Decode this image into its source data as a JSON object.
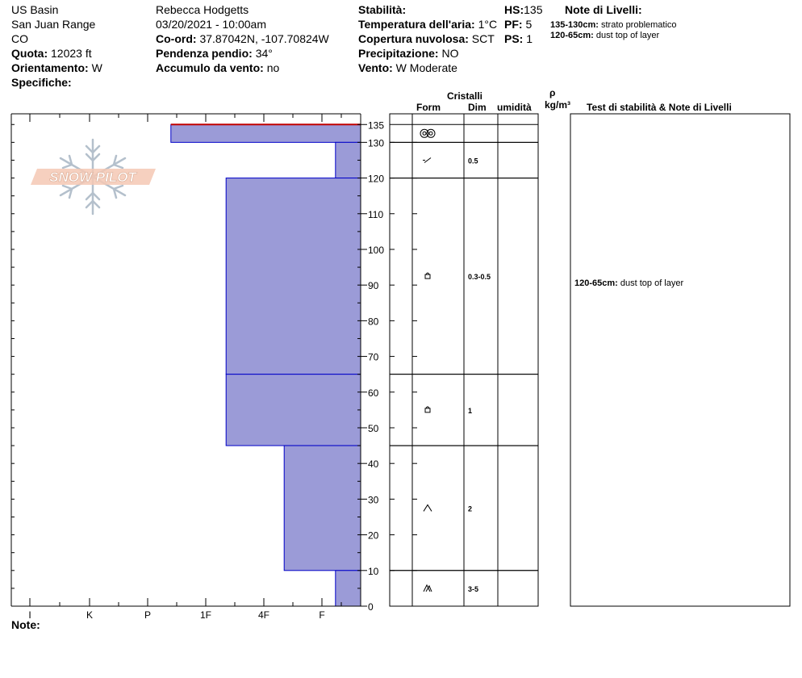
{
  "header": {
    "location": [
      "US Basin",
      "San Juan Range",
      "CO"
    ],
    "observer": "Rebecca Hodgetts",
    "datetime": "03/20/2021 - 10:00am",
    "quota_label": "Quota:",
    "quota_value": "12023 ft",
    "orient_label": "Orientamento:",
    "orient_value": "W",
    "specifiche_label": "Specifiche:",
    "coord_label": "Co-ord:",
    "coord_value": "37.87042N, -107.70824W",
    "pendenza_label": "Pendenza pendio:",
    "pendenza_value": "34°",
    "accumulo_label": "Accumulo da vento:",
    "accumulo_value": "no",
    "stabilita_label": "Stabilità:",
    "temp_label": "Temperatura dell'aria:",
    "temp_value": "1°C",
    "copertura_label": "Copertura nuvolosa:",
    "copertura_value": "SCT",
    "precip_label": "Precipitazione:",
    "precip_value": "NO",
    "vento_label": "Vento:",
    "vento_value": "W Moderate",
    "hs_label": "HS:",
    "hs_value": "135",
    "pf_label": "PF:",
    "pf_value": "5",
    "ps_label": "PS:",
    "ps_value": "1",
    "notes_title": "Note di Livelli:",
    "notes": [
      {
        "range": "135-130cm:",
        "text": "strato problematico"
      },
      {
        "range": "120-65cm:",
        "text": "dust top of layer"
      }
    ]
  },
  "columns": {
    "cristalli": "Cristalli",
    "form": "Form",
    "dim": "Dim",
    "umidita": "umidità",
    "rho": "ρ",
    "density_unit": "kg/m³",
    "tests": "Test di stabilità & Note di Livelli"
  },
  "logo_text": "SNOW PILOT",
  "footer_note": "Note:",
  "chart_data": {
    "type": "bar",
    "orientation": "horizontal",
    "title": "",
    "ylabel": "",
    "ylim": [
      0,
      138
    ],
    "y_ticks": [
      0,
      10,
      20,
      30,
      40,
      50,
      60,
      70,
      80,
      90,
      100,
      110,
      120,
      130,
      135
    ],
    "hardness_categories": [
      "I",
      "K",
      "P",
      "1F",
      "4F",
      "F"
    ],
    "hardness_scale_note": "hardness index: F=1, 4F=2, 1F=3, P=4, K=5, I=6",
    "layers": [
      {
        "top": 135,
        "bottom": 130,
        "hardness_index": 3.6,
        "form": "melt-forms",
        "dim": ""
      },
      {
        "top": 130,
        "bottom": 120,
        "hardness_index": 0.65,
        "form": "decomposing",
        "dim": "0.5"
      },
      {
        "top": 120,
        "bottom": 65,
        "hardness_index": 2.65,
        "form": "rounded-facets",
        "dim": "0.3-0.5"
      },
      {
        "top": 65,
        "bottom": 45,
        "hardness_index": 2.65,
        "form": "rounded-facets",
        "dim": "1"
      },
      {
        "top": 45,
        "bottom": 10,
        "hardness_index": 1.65,
        "form": "depth-hoar",
        "dim": "2"
      },
      {
        "top": 10,
        "bottom": 0,
        "hardness_index": 0.65,
        "form": "depth-hoar-chains",
        "dim": "3-5"
      }
    ],
    "problem_layer": {
      "depth": 135
    },
    "layer_note": {
      "at_depth": 120,
      "range": "120-65cm:",
      "text": "dust top of layer"
    },
    "colors": {
      "layer_fill": "#9b9bd7",
      "layer_stroke": "#0000c8",
      "problem_line": "#c00000"
    }
  }
}
